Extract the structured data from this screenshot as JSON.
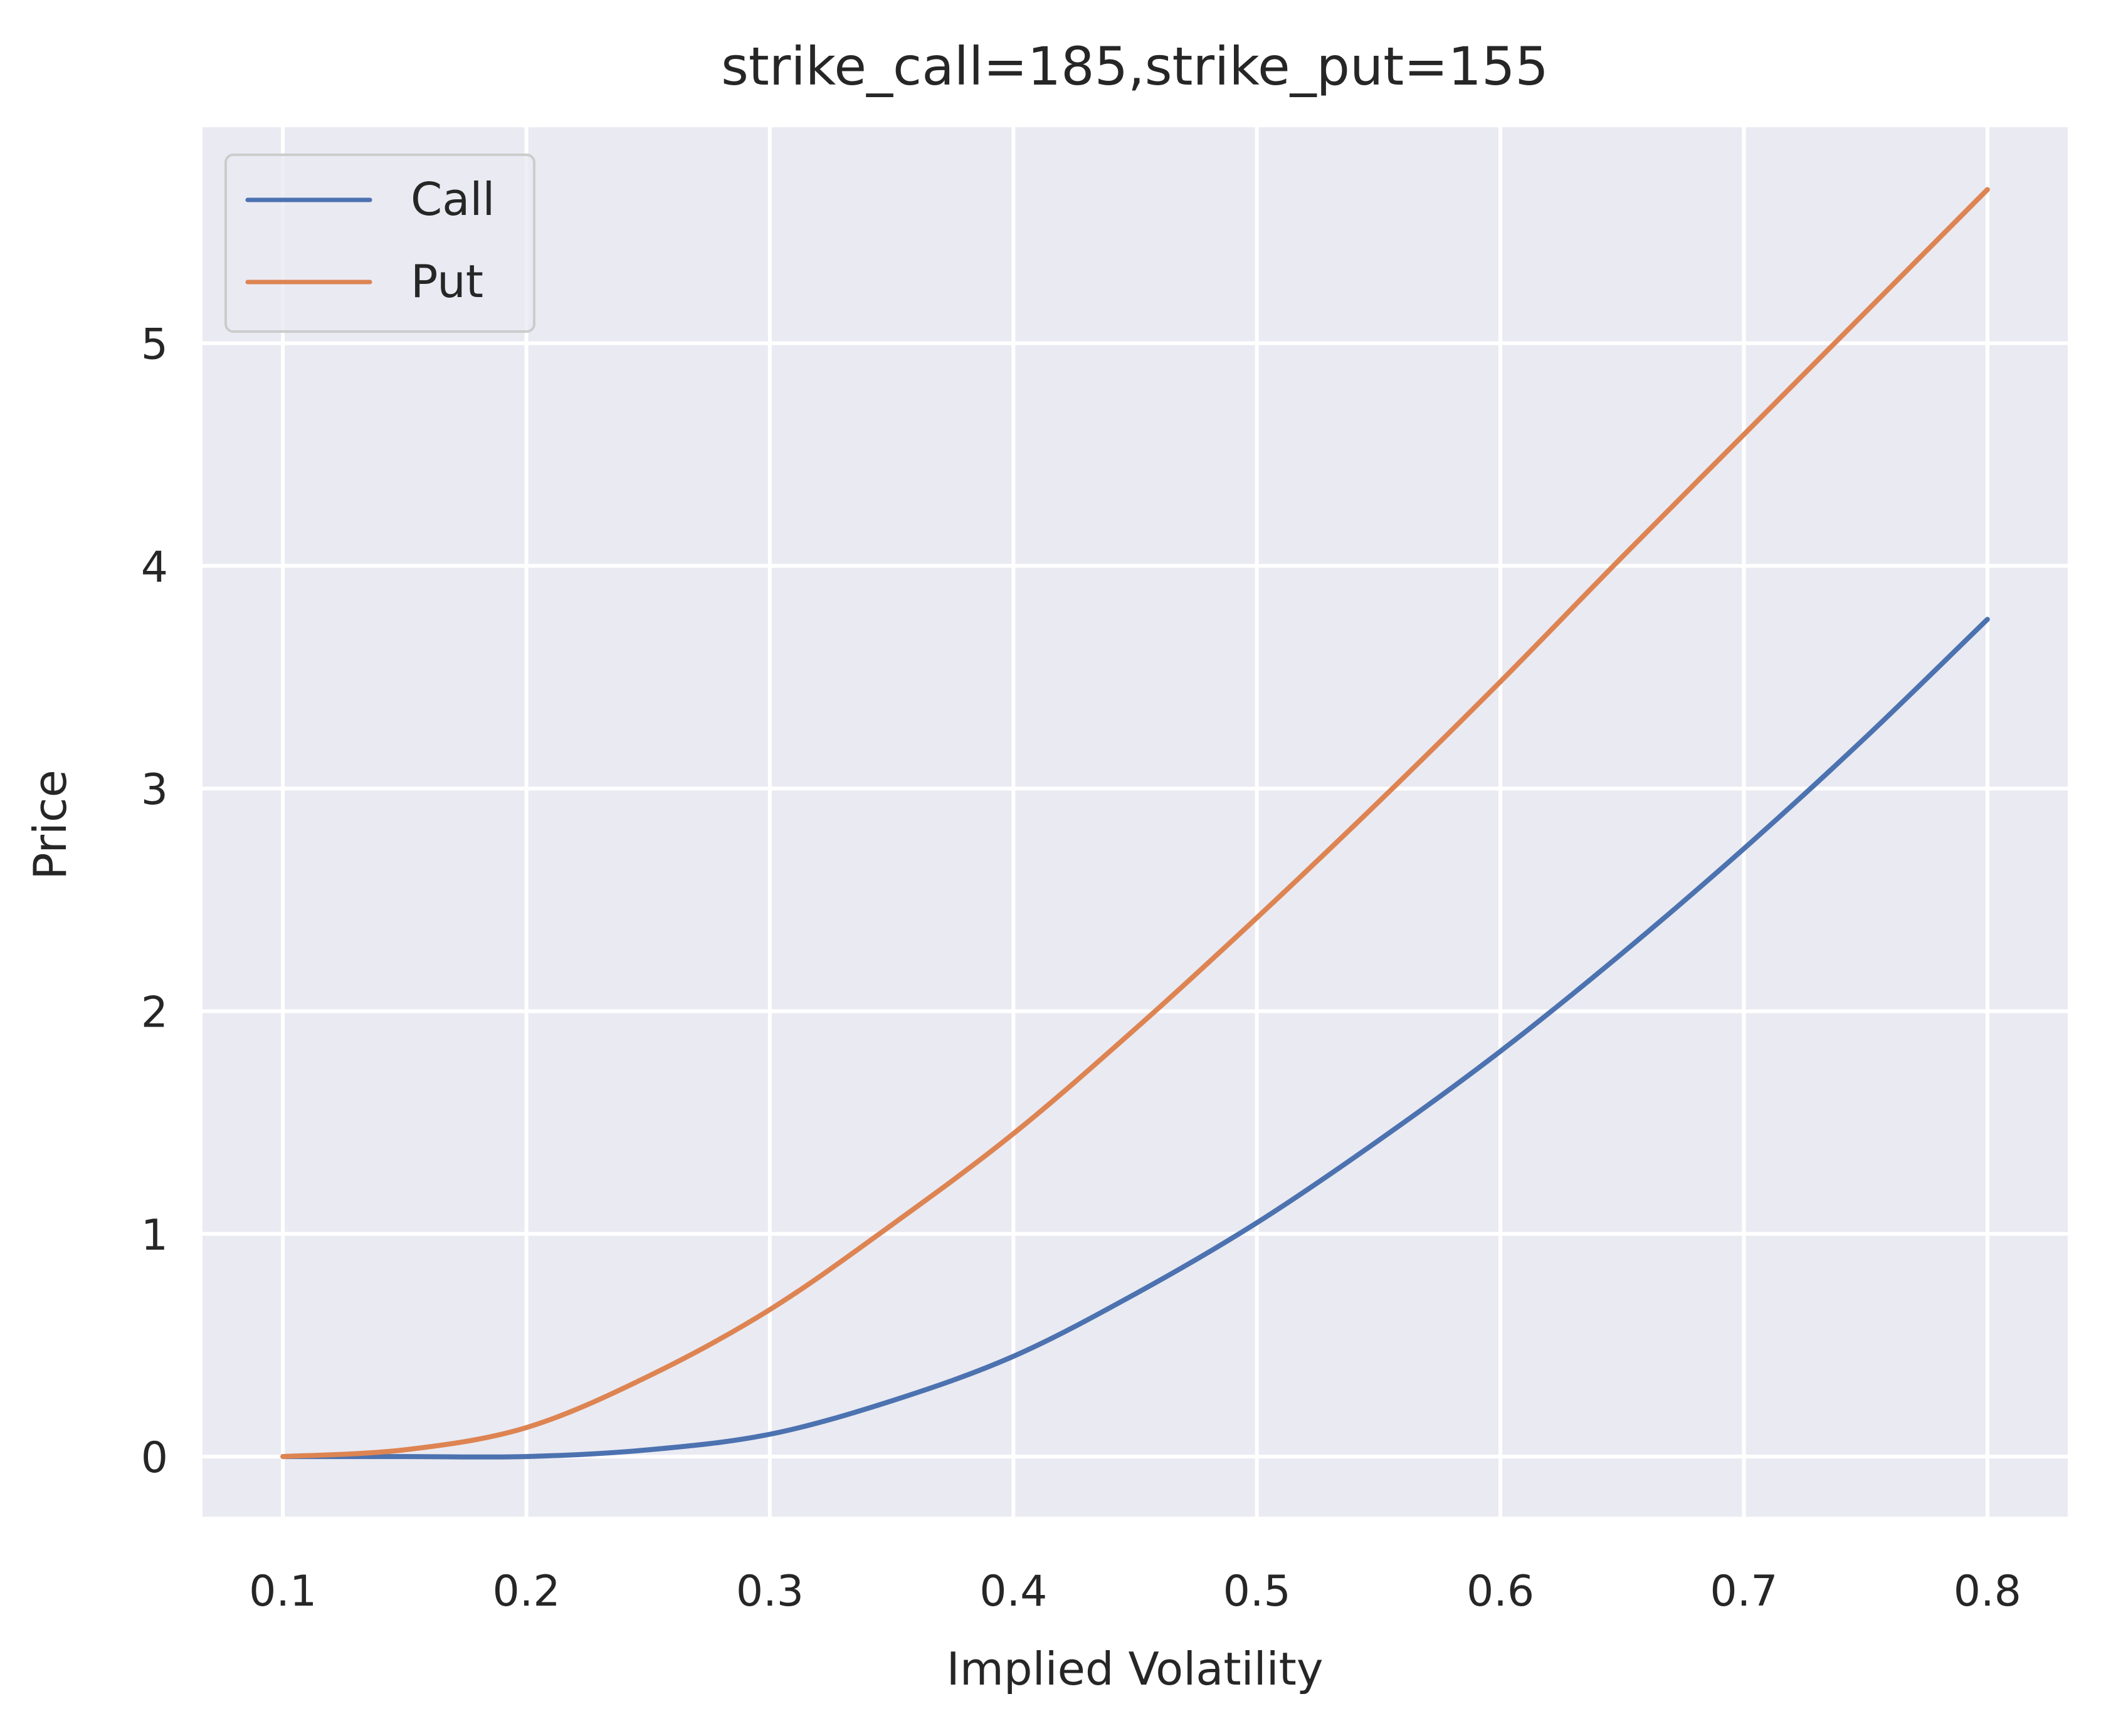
{
  "chart_data": {
    "type": "line",
    "title": "strike_call=185,strike_put=155",
    "xlabel": "Implied Volatility",
    "ylabel": "Price",
    "xlim": [
      0.067,
      0.833
    ],
    "ylim": [
      -0.27,
      5.97
    ],
    "xticks": [
      0.1,
      0.2,
      0.3,
      0.4,
      0.5,
      0.6,
      0.7,
      0.8
    ],
    "xtick_labels": [
      "0.1",
      "0.2",
      "0.3",
      "0.4",
      "0.5",
      "0.6",
      "0.7",
      "0.8"
    ],
    "yticks": [
      0,
      1,
      2,
      3,
      4,
      5
    ],
    "ytick_labels": [
      "0",
      "1",
      "2",
      "3",
      "4",
      "5"
    ],
    "grid": true,
    "legend_position": "upper-left",
    "background_color": "#eaeaf2",
    "grid_color": "#ffffff",
    "x": [
      0.1,
      0.15,
      0.2,
      0.25,
      0.3,
      0.35,
      0.4,
      0.45,
      0.5,
      0.55,
      0.6,
      0.65,
      0.7,
      0.75,
      0.8
    ],
    "series": [
      {
        "name": "Call",
        "color": "#4c72b0",
        "values": [
          0.0,
          0.0,
          0.0,
          0.03,
          0.1,
          0.25,
          0.45,
          0.73,
          1.05,
          1.42,
          1.82,
          2.26,
          2.73,
          3.23,
          3.76
        ]
      },
      {
        "name": "Put",
        "color": "#dd8452",
        "values": [
          0.0,
          0.03,
          0.13,
          0.36,
          0.66,
          1.04,
          1.45,
          1.92,
          2.42,
          2.94,
          3.48,
          4.04,
          4.59,
          5.14,
          5.69
        ]
      }
    ]
  }
}
